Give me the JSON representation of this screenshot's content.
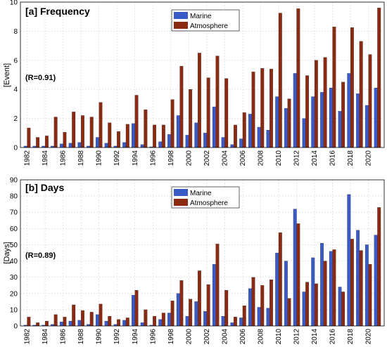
{
  "chart_data": [
    {
      "type": "bar",
      "title": "[a] Frequency",
      "ylabel": "[Event]",
      "annotation": "(R=0.91)",
      "ylim": [
        0,
        10
      ],
      "yticks": [
        0,
        2,
        4,
        6,
        8,
        10
      ],
      "grid": true,
      "legend": "top-center",
      "x": [
        1982,
        1983,
        1984,
        1985,
        1986,
        1987,
        1988,
        1989,
        1990,
        1991,
        1992,
        1993,
        1994,
        1995,
        1996,
        1997,
        1998,
        1999,
        2000,
        2001,
        2002,
        2003,
        2004,
        2005,
        2006,
        2007,
        2008,
        2009,
        2010,
        2011,
        2012,
        2013,
        2014,
        2015,
        2016,
        2017,
        2018,
        2019,
        2020,
        2021
      ],
      "xtick_labels": [
        "1982",
        "1984",
        "1986",
        "1988",
        "1990",
        "1992",
        "1994",
        "1996",
        "1998",
        "2000",
        "2002",
        "2004",
        "2006",
        "2008",
        "2010",
        "2012",
        "2014",
        "2016",
        "2018",
        "2020"
      ],
      "series": [
        {
          "name": "Marine",
          "color": "#3a5bc7",
          "values": [
            0.1,
            0.1,
            0.1,
            0.1,
            0.25,
            0.3,
            0.35,
            0.1,
            0.7,
            0.3,
            0.1,
            0.35,
            1.65,
            0.2,
            0.05,
            0.4,
            0.9,
            2.2,
            0.85,
            1.7,
            1.0,
            2.8,
            0.7,
            0.2,
            0.6,
            2.3,
            1.4,
            1.2,
            3.5,
            2.7,
            5.1,
            2.0,
            3.5,
            3.8,
            4.1,
            2.5,
            5.1,
            3.7,
            2.9,
            4.1
          ]
        },
        {
          "name": "Atmosphere",
          "color": "#8b2a12",
          "values": [
            1.35,
            0.7,
            0.8,
            2.1,
            1.05,
            2.45,
            2.2,
            2.1,
            3.1,
            1.7,
            1.1,
            1.6,
            3.6,
            2.6,
            1.55,
            1.55,
            3.3,
            5.6,
            4.0,
            6.5,
            4.8,
            6.3,
            4.75,
            1.55,
            2.4,
            5.2,
            5.45,
            5.4,
            9.25,
            3.35,
            9.55,
            4.95,
            6.0,
            6.2,
            8.3,
            4.5,
            8.25,
            7.3,
            6.4,
            9.6
          ]
        }
      ]
    },
    {
      "type": "bar",
      "title": "[b] Days",
      "ylabel": "[Days]",
      "annotation": "(R=0.89)",
      "ylim": [
        0,
        90
      ],
      "yticks": [
        0,
        10,
        20,
        30,
        40,
        50,
        60,
        70,
        80,
        90
      ],
      "grid": true,
      "legend": "top-center",
      "x": [
        1982,
        1983,
        1984,
        1985,
        1986,
        1987,
        1988,
        1989,
        1990,
        1991,
        1992,
        1993,
        1994,
        1995,
        1996,
        1997,
        1998,
        1999,
        2000,
        2001,
        2002,
        2003,
        2004,
        2005,
        2006,
        2007,
        2008,
        2009,
        2010,
        2011,
        2012,
        2013,
        2014,
        2015,
        2016,
        2017,
        2018,
        2019,
        2020,
        2021
      ],
      "xtick_labels": [
        "1982",
        "1984",
        "1986",
        "1988",
        "1990",
        "1992",
        "1994",
        "1996",
        "1998",
        "2000",
        "2002",
        "2004",
        "2006",
        "2008",
        "2010",
        "2012",
        "2014",
        "2016",
        "2018",
        "2020"
      ],
      "series": [
        {
          "name": "Marine",
          "color": "#3a5bc7",
          "values": [
            0.5,
            0.5,
            0.5,
            1,
            2.5,
            3,
            3.5,
            1,
            7,
            3,
            1,
            3.5,
            19,
            2,
            0.5,
            4,
            8,
            20,
            6,
            15,
            9,
            38,
            6,
            2,
            5,
            23,
            11.5,
            11,
            45,
            40,
            72,
            21,
            42,
            51,
            46,
            24,
            81,
            59,
            50,
            56
          ]
        },
        {
          "name": "Atmosphere",
          "color": "#8b2a12",
          "values": [
            5.5,
            2,
            3,
            7,
            5.5,
            13,
            9.5,
            8.5,
            13.5,
            6,
            4,
            5,
            22,
            10,
            6,
            8,
            15.5,
            28,
            16.5,
            34,
            25.5,
            50.5,
            22,
            5.5,
            12.5,
            30,
            25,
            28.5,
            57.5,
            17,
            63,
            27,
            26,
            40,
            47,
            21,
            53.5,
            46.5,
            38,
            73
          ]
        }
      ]
    }
  ]
}
